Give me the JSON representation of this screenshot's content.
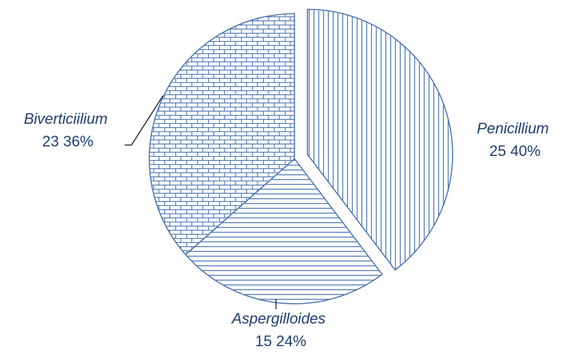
{
  "chart_data": {
    "type": "pie",
    "title": "",
    "slices": [
      {
        "name": "Penicillium",
        "value": 25,
        "percent": "40%",
        "exploded": true,
        "pattern": "vertical-lines"
      },
      {
        "name": "Aspergilloides",
        "value": 15,
        "percent": "24%",
        "exploded": false,
        "pattern": "horizontal-lines"
      },
      {
        "name": "Biverticiilium",
        "value": 23,
        "percent": "36%",
        "exploded": false,
        "pattern": "brick"
      }
    ],
    "separator": "਽",
    "colors": {
      "line": "#4a74b4",
      "text": "#1f3f72",
      "background": "#ffffff"
    },
    "legend": "none"
  }
}
